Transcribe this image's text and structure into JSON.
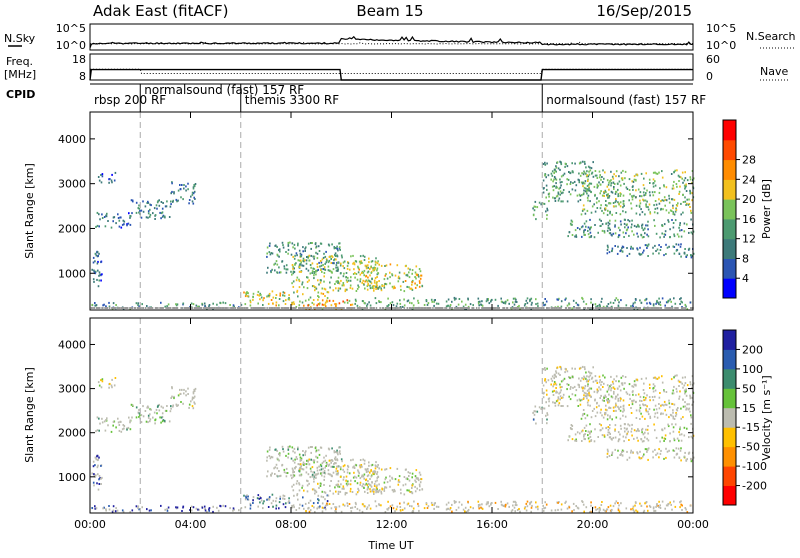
{
  "header": {
    "station": "Adak East (fitACF)",
    "beam": "Beam 15",
    "date": "16/Sep/2015"
  },
  "colors": {
    "power": [
      "#0000ff",
      "#2b55b3",
      "#3d7a7a",
      "#4c9a70",
      "#7ac35a",
      "#f2c01e",
      "#ff8c00",
      "#ff4a00",
      "#ff0000"
    ],
    "velocity": [
      "#2020a0",
      "#2a5cb0",
      "#3c8c6e",
      "#66c23a",
      "#bcbcb0",
      "#ffc000",
      "#ff9000",
      "#ff4500",
      "#ff0000"
    ],
    "gray": "#9a9a9a"
  },
  "chart_data": [
    {
      "type": "line",
      "panel": "noise",
      "left_label": "N.Sky",
      "right_label": "N.Search",
      "left_ticks": [
        "10^5",
        "10^0"
      ],
      "right_ticks": [
        "10^5",
        "10^0"
      ],
      "x_hours": [
        0,
        0.05,
        2,
        4,
        6,
        8,
        9.9,
        10,
        12,
        14,
        16,
        17.9,
        18,
        20,
        22,
        24
      ],
      "sky": [
        0.3,
        1.2,
        1.3,
        1.3,
        1.3,
        1.3,
        1.3,
        2.1,
        1.9,
        1.7,
        1.5,
        1.4,
        1.1,
        1.1,
        1.1,
        1.1
      ],
      "search": [
        1.2,
        1.2,
        1.2,
        1.2,
        1.2,
        1.2,
        1.2,
        1.2,
        1.2,
        1.2,
        1.2,
        1.2,
        1.2,
        1.2,
        1.2,
        1.2
      ]
    },
    {
      "type": "line",
      "panel": "frequency",
      "left_label": "Freq. [MHz]",
      "right_label": "Nave",
      "left_ticks": [
        "18",
        "8"
      ],
      "right_ticks": [
        "60",
        "0"
      ],
      "x_hours": [
        0,
        0.05,
        2,
        2.05,
        9.95,
        10,
        17.95,
        18,
        24
      ],
      "freq_mhz": [
        8,
        12,
        12,
        12,
        12,
        8,
        8,
        12,
        12
      ],
      "nave": [
        25,
        25,
        25,
        15,
        15,
        15,
        15,
        25,
        25
      ]
    },
    {
      "type": "table",
      "panel": "cpid",
      "label": "CPID",
      "modes": [
        {
          "start_hour": 0,
          "text": "rbsp 200 RF"
        },
        {
          "start_hour": 2,
          "text": "normalsound (fast) 157 RF"
        },
        {
          "start_hour": 6,
          "text": "themis 3300 RF"
        },
        {
          "start_hour": 18,
          "text": "normalsound (fast) 157 RF"
        }
      ]
    },
    {
      "type": "heatmap",
      "panel": "power",
      "xlabel": "",
      "ylabel": "Slant Range [km]",
      "ylim": [
        180,
        4600
      ],
      "yticks": [
        1000,
        2000,
        3000,
        4000
      ],
      "colorbar_label": "Power [dB]",
      "colorbar_ticks": [
        4,
        8,
        12,
        16,
        20,
        24,
        28
      ],
      "colorbar_range": [
        0,
        32
      ]
    },
    {
      "type": "heatmap",
      "panel": "velocity",
      "xlabel": "Time UT",
      "ylabel": "Slant Range [km]",
      "ylim": [
        180,
        4600
      ],
      "yticks": [
        1000,
        2000,
        3000,
        4000
      ],
      "xlim": [
        0,
        24
      ],
      "xticks": [
        "00:00",
        "04:00",
        "08:00",
        "12:00",
        "16:00",
        "20:00",
        "00:00"
      ],
      "colorbar_label": "Velocity [m s⁻¹]",
      "colorbar_ticks": [
        "200",
        "100",
        "50",
        "15",
        "-15",
        "-50",
        "-100",
        "-200"
      ]
    }
  ],
  "echo_regions": [
    {
      "t0": 0.0,
      "t1": 0.5,
      "r0": 700,
      "r1": 1500,
      "pow": 6,
      "vel": 0
    },
    {
      "t0": 0.2,
      "t1": 1.6,
      "r0": 2000,
      "r1": 2350,
      "pow": 7,
      "vel": 3
    },
    {
      "t0": 1.6,
      "t1": 3.2,
      "r0": 2200,
      "r1": 2650,
      "pow": 8,
      "vel": 3
    },
    {
      "t0": 3.2,
      "t1": 4.2,
      "r0": 2550,
      "r1": 3050,
      "pow": 8,
      "vel": 4
    },
    {
      "t0": 0.3,
      "t1": 1.0,
      "r0": 3000,
      "r1": 3250,
      "pow": 6,
      "vel": 4
    },
    {
      "t0": 7.0,
      "t1": 10.0,
      "r0": 1000,
      "r1": 1700,
      "pow": 10,
      "vel": 3
    },
    {
      "t0": 8.0,
      "t1": 11.5,
      "r0": 600,
      "r1": 1400,
      "pow": 16,
      "vel": 4
    },
    {
      "t0": 10.5,
      "t1": 13.2,
      "r0": 600,
      "r1": 1200,
      "pow": 18,
      "vel": 4
    },
    {
      "t0": 6.0,
      "t1": 9.5,
      "r0": 280,
      "r1": 600,
      "pow": 18,
      "vel": 1
    },
    {
      "t0": 8.0,
      "t1": 10.5,
      "r0": 200,
      "r1": 400,
      "pow": 22,
      "vel": 5
    },
    {
      "t0": 10.5,
      "t1": 17.8,
      "r0": 200,
      "r1": 450,
      "pow": 12,
      "vel": 5
    },
    {
      "t0": 0.0,
      "t1": 6.0,
      "r0": 200,
      "r1": 350,
      "pow": 10,
      "vel": 0
    },
    {
      "t0": 17.6,
      "t1": 18.2,
      "r0": 2200,
      "r1": 2600,
      "pow": 12,
      "vel": 2
    },
    {
      "t0": 18.0,
      "t1": 20.0,
      "r0": 2600,
      "r1": 3500,
      "pow": 12,
      "vel": 4
    },
    {
      "t0": 19.5,
      "t1": 24.0,
      "r0": 2300,
      "r1": 3300,
      "pow": 14,
      "vel": 4
    },
    {
      "t0": 19.0,
      "t1": 24.0,
      "r0": 1800,
      "r1": 2200,
      "pow": 10,
      "vel": 4
    },
    {
      "t0": 20.5,
      "t1": 24.0,
      "r0": 1350,
      "r1": 1650,
      "pow": 8,
      "vel": 4
    },
    {
      "t0": 18.0,
      "t1": 24.0,
      "r0": 200,
      "r1": 450,
      "pow": 10,
      "vel": 5
    }
  ]
}
